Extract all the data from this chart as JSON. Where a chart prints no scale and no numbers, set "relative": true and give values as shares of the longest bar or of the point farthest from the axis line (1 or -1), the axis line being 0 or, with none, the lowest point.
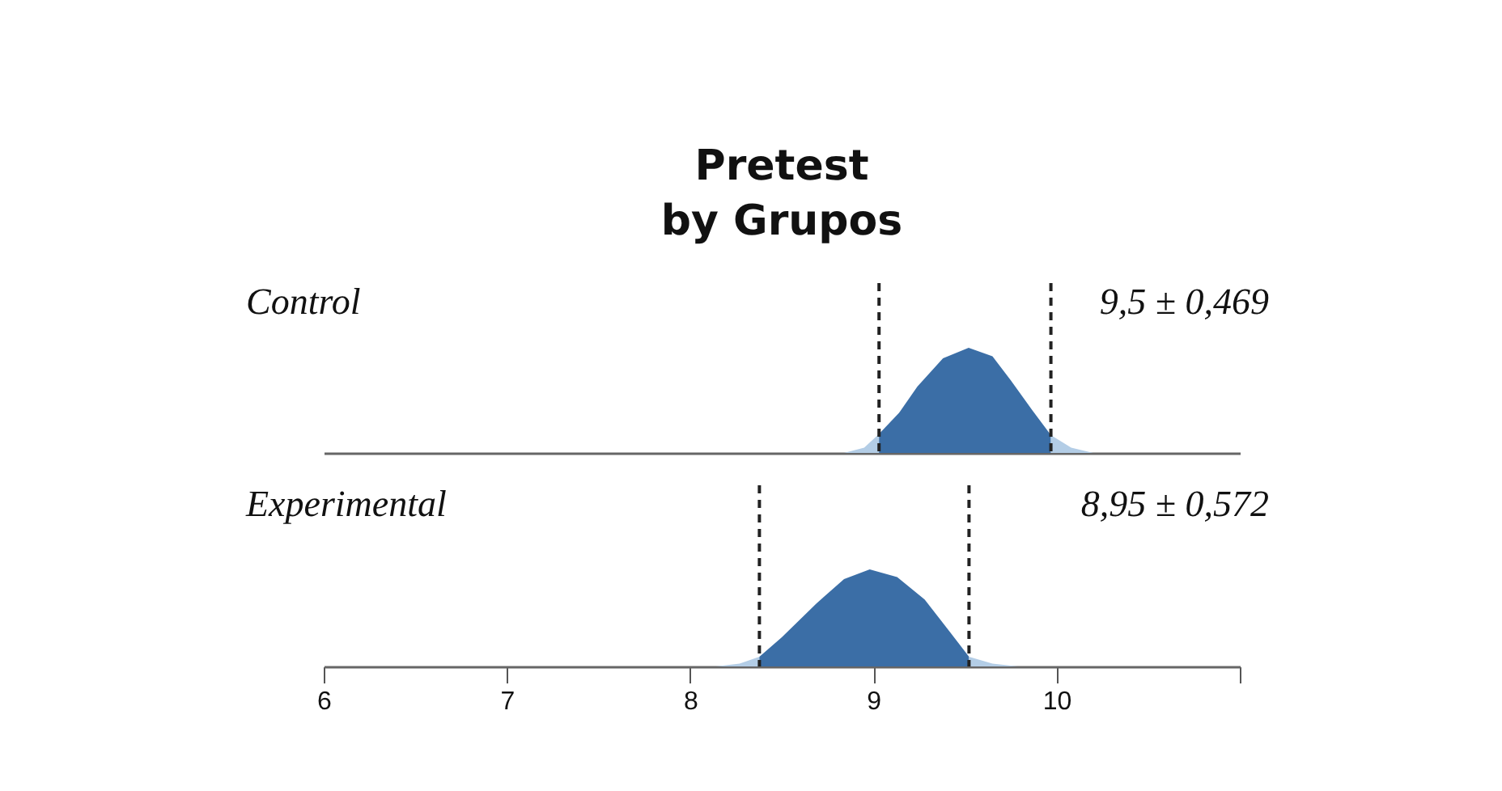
{
  "chart_data": [
    {
      "type": "area",
      "title": "Pretest\nby Grupos",
      "subtitle": "Control",
      "annotations": [
        "9,5 ± 0,469"
      ],
      "relative": true,
      "xlim": [
        6,
        11
      ],
      "tick_labels": false,
      "series": [
        {
          "color": "#b3cde6",
          "x": [
            8.84,
            8.95,
            9.031
          ],
          "values": [
            0,
            0.05,
            0.18
          ]
        },
        {
          "color": "#3b6ea6",
          "x": [
            9.031,
            9.14,
            9.24,
            9.38,
            9.52,
            9.65,
            9.75,
            9.87,
            9.969
          ],
          "values": [
            0.18,
            0.38,
            0.63,
            0.9,
            1,
            0.92,
            0.69,
            0.4,
            0.17
          ]
        },
        {
          "color": "#b3cde6",
          "x": [
            9.969,
            10.08,
            10.2
          ],
          "values": [
            0.17,
            0.05,
            0
          ]
        }
      ],
      "ref_lines": [
        {
          "axis": "x",
          "value": 9.031,
          "color": "#222222",
          "line_style": "dashed"
        },
        {
          "axis": "x",
          "value": 9.969,
          "color": "#222222",
          "line_style": "dashed"
        }
      ]
    },
    {
      "type": "area",
      "subtitle": "Experimental",
      "annotations": [
        "8,95 ± 0,572"
      ],
      "relative": true,
      "xlim": [
        6,
        11
      ],
      "xticks": [
        6,
        7,
        8,
        9,
        10,
        {
          "value": 11,
          "label": null
        }
      ],
      "tick_labels": "x",
      "series": [
        {
          "color": "#b3cde6",
          "x": [
            8.14,
            8.27,
            8.378
          ],
          "values": [
            0,
            0.03,
            0.1
          ]
        },
        {
          "color": "#3b6ea6",
          "x": [
            8.378,
            8.5,
            8.69,
            8.84,
            8.98,
            9.13,
            9.28,
            9.42,
            9.522
          ],
          "values": [
            0.1,
            0.3,
            0.65,
            0.9,
            1,
            0.92,
            0.69,
            0.35,
            0.1
          ]
        },
        {
          "color": "#b3cde6",
          "x": [
            9.522,
            9.65,
            9.79
          ],
          "values": [
            0.1,
            0.03,
            0
          ]
        }
      ],
      "ref_lines": [
        {
          "axis": "x",
          "value": 8.378,
          "color": "#222222",
          "line_style": "dashed"
        },
        {
          "axis": "x",
          "value": 9.522,
          "color": "#222222",
          "line_style": "dashed"
        }
      ]
    }
  ]
}
